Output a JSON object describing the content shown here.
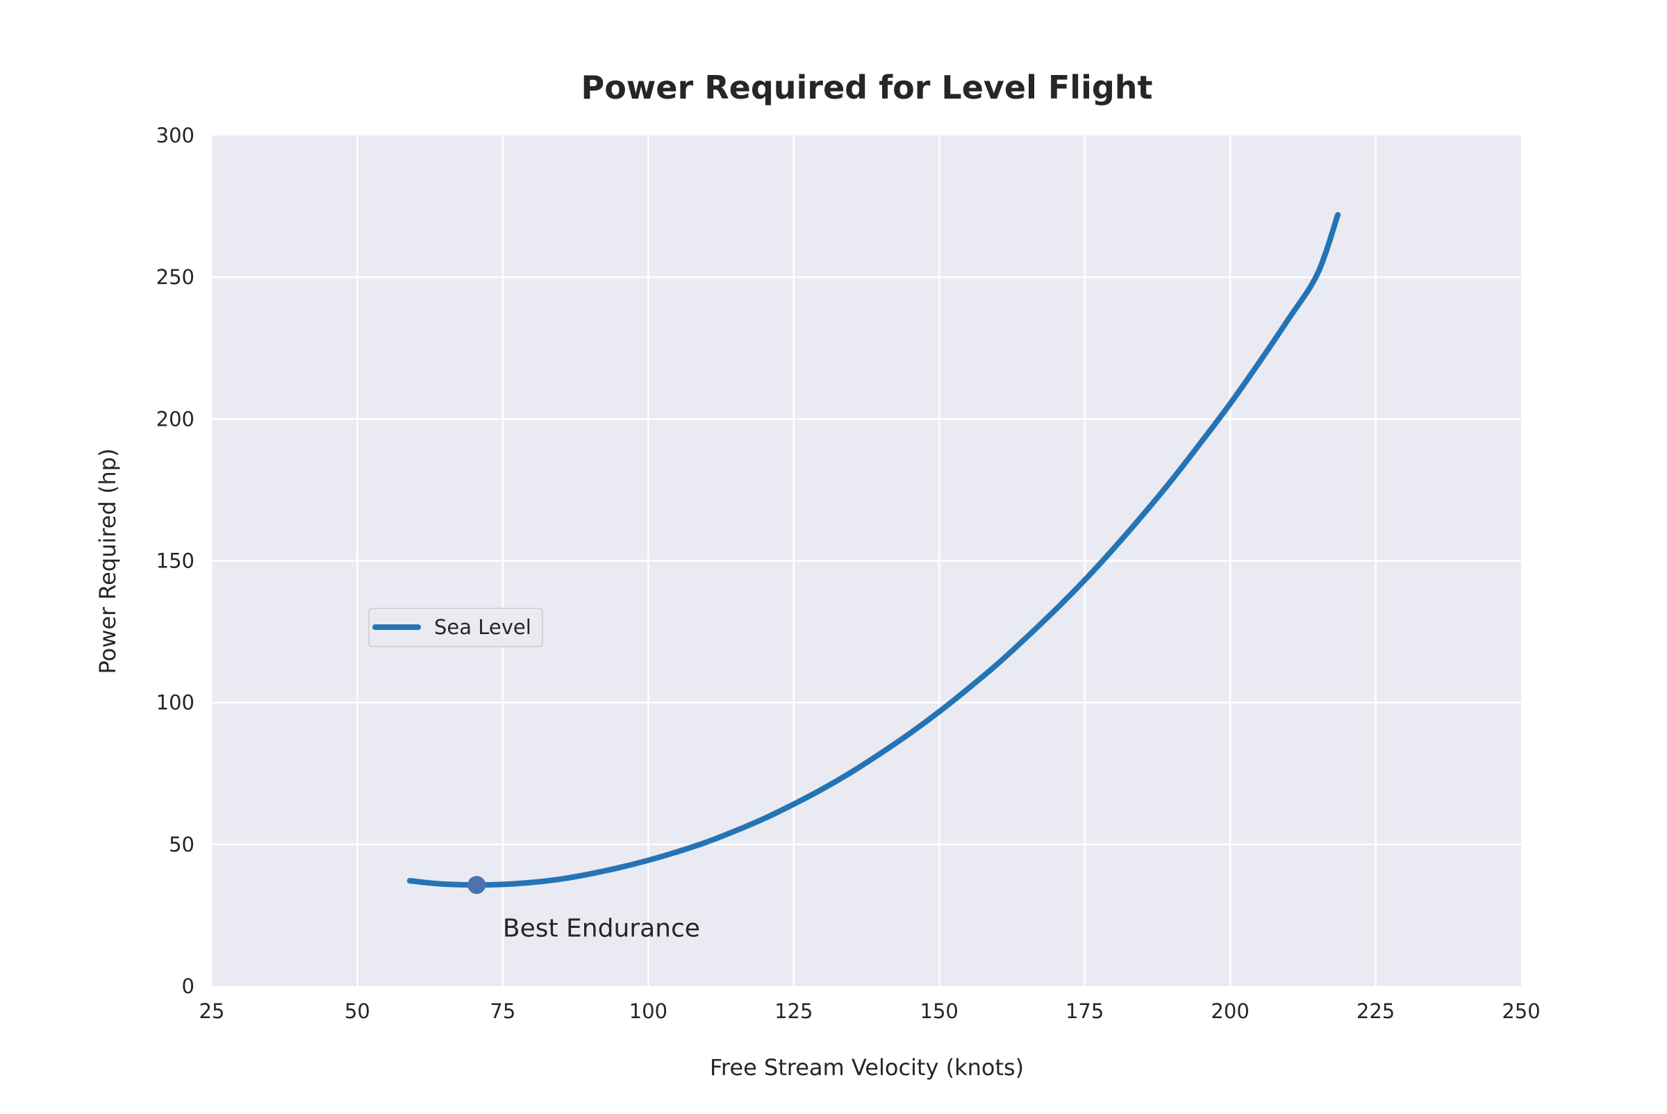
{
  "chart_data": {
    "type": "line",
    "title": "Power Required for Level Flight",
    "xlabel": "Free Stream Velocity (knots)",
    "ylabel": "Power Required (hp)",
    "xlim": [
      25,
      250
    ],
    "ylim": [
      0,
      300
    ],
    "xticks": [
      25,
      50,
      75,
      100,
      125,
      150,
      175,
      200,
      225,
      250
    ],
    "yticks": [
      0,
      50,
      100,
      150,
      200,
      250,
      300
    ],
    "grid": true,
    "legend_position": "center-left",
    "series": [
      {
        "name": "Sea Level",
        "color": "#2474b5",
        "x": [
          59,
          62,
          65,
          70.5,
          75,
          80,
          85,
          90,
          95,
          100,
          105,
          110,
          115,
          120,
          125,
          130,
          135,
          140,
          145,
          150,
          155,
          160,
          165,
          170,
          175,
          180,
          185,
          190,
          195,
          200,
          205,
          210,
          215,
          218.5
        ],
        "y": [
          37.2,
          36.5,
          36.0,
          35.7,
          35.9,
          36.6,
          37.8,
          39.6,
          41.8,
          44.4,
          47.4,
          50.8,
          54.8,
          59.2,
          64.2,
          69.6,
          75.6,
          82.2,
          89.2,
          96.8,
          105.0,
          113.6,
          123.0,
          132.8,
          143.2,
          154.4,
          166.2,
          178.6,
          191.8,
          205.4,
          220.0,
          235.2,
          251.2,
          272.0
        ]
      }
    ],
    "annotations": [
      {
        "text": "Best Endurance",
        "marker_x": 70.5,
        "marker_y": 35.7,
        "marker_color": "#4c72b0",
        "text_x": 75,
        "text_y": 17.5
      }
    ],
    "colors": {
      "plot_background": "#eaeaf2",
      "grid": "#ffffff",
      "page_background": "#ffffff"
    }
  }
}
